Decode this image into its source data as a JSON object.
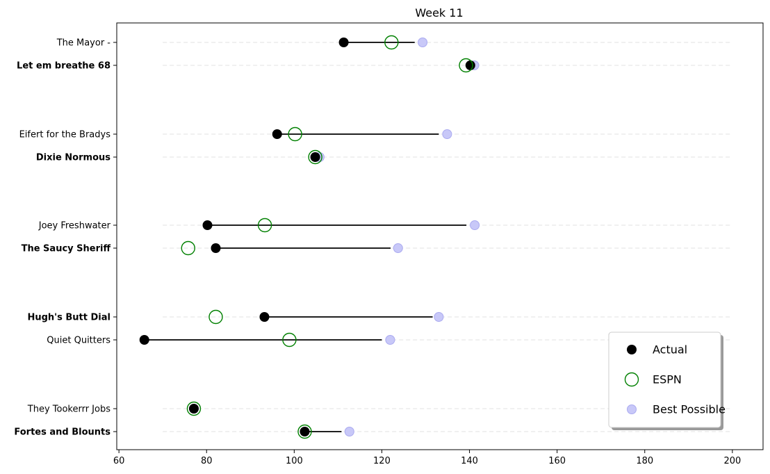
{
  "chart_data": {
    "type": "scatter",
    "title": "Week 11",
    "xlabel": "",
    "ylabel": "",
    "xlim": [
      59.5,
      207
    ],
    "xticks": [
      60,
      80,
      100,
      120,
      140,
      160,
      180,
      200
    ],
    "grid_x_range": [
      70,
      200
    ],
    "grid": "horizontal dashed",
    "legend_position": "lower-right",
    "teams": [
      {
        "name": "The Mayor -",
        "bold": false,
        "actual": 111.3,
        "espn": 122.2,
        "best": 129.3,
        "line_end": 127.5
      },
      {
        "name": "Let em breathe 68",
        "bold": true,
        "actual": 140.2,
        "espn": 139.2,
        "best": 141.1,
        "line_end": null
      },
      {
        "name": "Eifert  for the Bradys",
        "bold": false,
        "actual": 96.1,
        "espn": 100.2,
        "best": 134.9,
        "line_end": 133.0
      },
      {
        "name": "Dixie Normous",
        "bold": true,
        "actual": 104.8,
        "espn": 104.8,
        "best": 105.8,
        "line_end": null
      },
      {
        "name": "Joey Freshwater",
        "bold": false,
        "actual": 80.2,
        "espn": 93.3,
        "best": 141.2,
        "line_end": 139.3
      },
      {
        "name": "The Saucy Sheriff",
        "bold": true,
        "actual": 82.1,
        "espn": 75.8,
        "best": 123.7,
        "line_end": 122.0
      },
      {
        "name": "Hugh's  Butt Dial",
        "bold": true,
        "actual": 93.2,
        "espn": 82.1,
        "best": 133.0,
        "line_end": 131.6
      },
      {
        "name": "Quiet Quitters",
        "bold": false,
        "actual": 65.8,
        "espn": 98.9,
        "best": 121.9,
        "line_end": 120.0
      },
      {
        "name": "They Tookerrr Jobs",
        "bold": false,
        "actual": 77.1,
        "espn": 77.1,
        "best": 77.1,
        "line_end": null
      },
      {
        "name": "Fortes and Blounts",
        "bold": true,
        "actual": 102.4,
        "espn": 102.4,
        "best": 112.6,
        "line_end": 110.8
      }
    ],
    "legend": [
      {
        "label": "Actual",
        "marker": "actual"
      },
      {
        "label": "ESPN",
        "marker": "espn"
      },
      {
        "label": "Best Possible",
        "marker": "best"
      }
    ],
    "colors": {
      "actual": "#000000",
      "espn_stroke": "#008000",
      "best_fill": "#c8c8f8",
      "best_stroke": "#aaaaf0",
      "grid": "#e0e0e0",
      "line": "#000000"
    }
  }
}
